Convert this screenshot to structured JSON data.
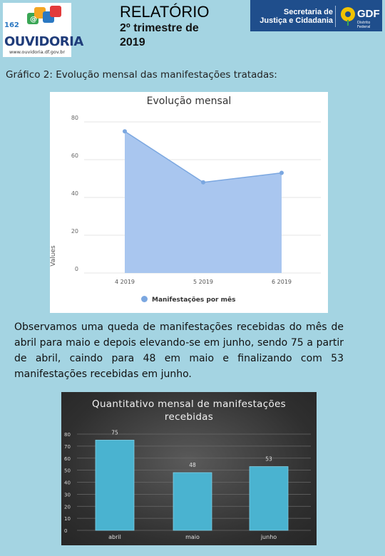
{
  "header": {
    "logo_badge": "162",
    "logo_name": "OUVIDORIA",
    "logo_url": "www.ouvidoria.df.gov.br",
    "title": "RELATÓRIO",
    "subtitle_line1": "2º trimestre de",
    "subtitle_line2": "2019",
    "banner_line1": "Secretaria de",
    "banner_line2": "Justiça e Cidadania",
    "banner_gdf": "GDF",
    "banner_gdf_sub": "Distrito Federal",
    "colors": {
      "banner": "#1f4e8c",
      "logo_text": "#1f3c7a",
      "page_bg": "#a4d4e2"
    }
  },
  "caption": "Gráfico 2: Evolução mensal das manifestações tratadas:",
  "body_text": "Observamos uma queda de manifestações recebidas do mês de abril para maio e depois elevando-se em junho, sendo 75 a partir de abril, caindo para 48 em maio e finalizando com 53 manifestações recebidas em junho.",
  "chart_data": [
    {
      "type": "area",
      "title": "Evolução mensal",
      "ylabel": "Values",
      "xlabel": "",
      "categories": [
        "4 2019",
        "5 2019",
        "6 2019"
      ],
      "series": [
        {
          "name": "Manifestações por mês",
          "values": [
            75,
            48,
            53
          ],
          "color": "#7ba7e0"
        }
      ],
      "ylim": [
        0,
        80
      ],
      "yticks": [
        "0",
        "20",
        "40",
        "60",
        "80"
      ],
      "grid": true,
      "legend": "bottom"
    },
    {
      "type": "bar",
      "title": "Quantitativo mensal de manifestações recebidas",
      "categories": [
        "abril",
        "maio",
        "junho"
      ],
      "values": [
        75,
        48,
        53
      ],
      "value_labels": [
        "75",
        "48",
        "53"
      ],
      "ylim": [
        0,
        80
      ],
      "yticks": [
        "0",
        "10",
        "20",
        "30",
        "40",
        "50",
        "60",
        "70",
        "80"
      ],
      "grid": true,
      "bar_color": "#4ab3d0"
    }
  ]
}
